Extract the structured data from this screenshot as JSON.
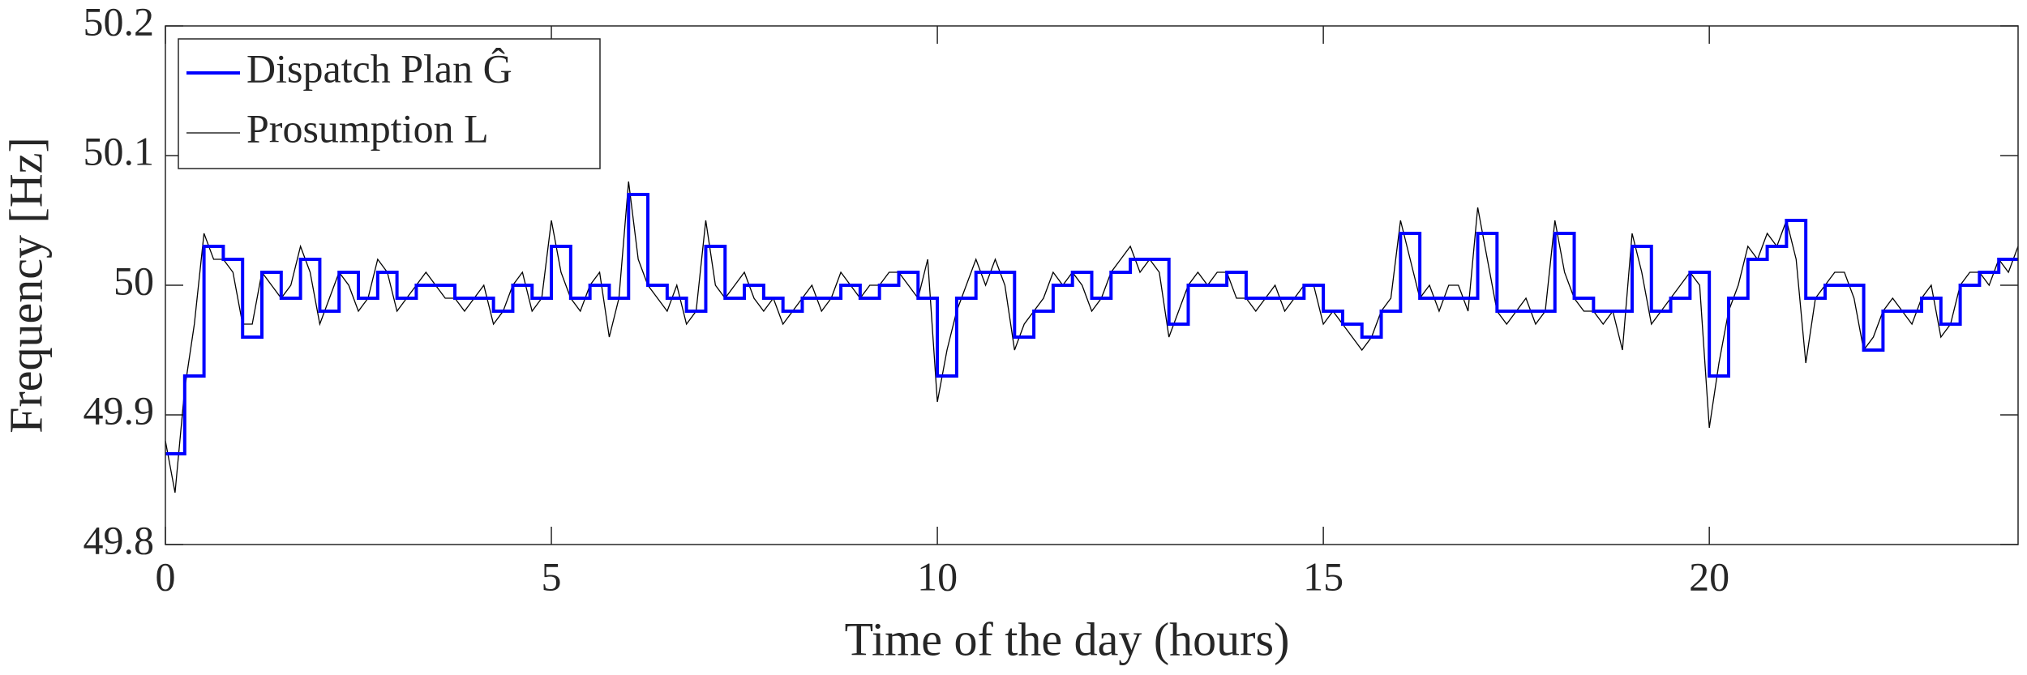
{
  "chart_data": {
    "type": "line",
    "xlabel": "Time of the day (hours)",
    "ylabel": "Frequency [Hz]",
    "xlim": [
      0,
      24
    ],
    "xticks": [
      0,
      5,
      10,
      15,
      20
    ],
    "ylim": [
      49.8,
      50.2
    ],
    "yticks": [
      49.8,
      49.9,
      50,
      50.1,
      50.2
    ],
    "legend": "upper left",
    "series": [
      {
        "name": "Dispatch Plan Ĝ",
        "color": "#0000ff",
        "step": true,
        "x": [
          0,
          0.25,
          0.5,
          0.75,
          1,
          1.25,
          1.5,
          1.75,
          2,
          2.25,
          2.5,
          2.75,
          3,
          3.25,
          3.5,
          3.75,
          4,
          4.25,
          4.5,
          4.75,
          5,
          5.25,
          5.5,
          5.75,
          6,
          6.25,
          6.5,
          6.75,
          7,
          7.25,
          7.5,
          7.75,
          8,
          8.25,
          8.5,
          8.75,
          9,
          9.25,
          9.5,
          9.75,
          10,
          10.25,
          10.5,
          10.75,
          11,
          11.25,
          11.5,
          11.75,
          12,
          12.25,
          12.5,
          12.75,
          13,
          13.25,
          13.5,
          13.75,
          14,
          14.25,
          14.5,
          14.75,
          15,
          15.25,
          15.5,
          15.75,
          16,
          16.25,
          16.5,
          16.75,
          17,
          17.25,
          17.5,
          17.75,
          18,
          18.25,
          18.5,
          18.75,
          19,
          19.25,
          19.5,
          19.75,
          20,
          20.25,
          20.5,
          20.75,
          21,
          21.25,
          21.5,
          21.75,
          22,
          22.25,
          22.5,
          22.75,
          23,
          23.25,
          23.5,
          23.75,
          24
        ],
        "values": [
          49.87,
          49.93,
          50.03,
          50.02,
          49.96,
          50.01,
          49.99,
          50.02,
          49.98,
          50.01,
          49.99,
          50.01,
          49.99,
          50.0,
          50.0,
          49.99,
          49.99,
          49.98,
          50.0,
          49.99,
          50.03,
          49.99,
          50.0,
          49.99,
          50.07,
          50.0,
          49.99,
          49.98,
          50.03,
          49.99,
          50.0,
          49.99,
          49.98,
          49.99,
          49.99,
          50.0,
          49.99,
          50.0,
          50.01,
          49.99,
          49.93,
          49.99,
          50.01,
          50.01,
          49.96,
          49.98,
          50.0,
          50.01,
          49.99,
          50.01,
          50.02,
          50.02,
          49.97,
          50.0,
          50.0,
          50.01,
          49.99,
          49.99,
          49.99,
          50.0,
          49.98,
          49.97,
          49.96,
          49.98,
          50.04,
          49.99,
          49.99,
          49.99,
          50.04,
          49.98,
          49.98,
          49.98,
          50.04,
          49.99,
          49.98,
          49.98,
          50.03,
          49.98,
          49.99,
          50.01,
          49.93,
          49.99,
          50.02,
          50.03,
          50.05,
          49.99,
          50.0,
          50.0,
          49.95,
          49.98,
          49.98,
          49.99,
          49.97,
          50.0,
          50.01,
          50.02,
          50.02
        ]
      },
      {
        "name": "Prosumption L",
        "color": "#000000",
        "x": [
          0,
          0.125,
          0.25,
          0.375,
          0.5,
          0.625,
          0.75,
          0.875,
          1,
          1.125,
          1.25,
          1.375,
          1.5,
          1.625,
          1.75,
          1.875,
          2,
          2.125,
          2.25,
          2.375,
          2.5,
          2.625,
          2.75,
          2.875,
          3,
          3.125,
          3.25,
          3.375,
          3.5,
          3.625,
          3.75,
          3.875,
          4,
          4.125,
          4.25,
          4.375,
          4.5,
          4.625,
          4.75,
          4.875,
          5,
          5.125,
          5.25,
          5.375,
          5.5,
          5.625,
          5.75,
          5.875,
          6,
          6.125,
          6.25,
          6.375,
          6.5,
          6.625,
          6.75,
          6.875,
          7,
          7.125,
          7.25,
          7.375,
          7.5,
          7.625,
          7.75,
          7.875,
          8,
          8.125,
          8.25,
          8.375,
          8.5,
          8.625,
          8.75,
          8.875,
          9,
          9.125,
          9.25,
          9.375,
          9.5,
          9.625,
          9.75,
          9.875,
          10,
          10.125,
          10.25,
          10.375,
          10.5,
          10.625,
          10.75,
          10.875,
          11,
          11.125,
          11.25,
          11.375,
          11.5,
          11.625,
          11.75,
          11.875,
          12,
          12.125,
          12.25,
          12.375,
          12.5,
          12.625,
          12.75,
          12.875,
          13,
          13.125,
          13.25,
          13.375,
          13.5,
          13.625,
          13.75,
          13.875,
          14,
          14.125,
          14.25,
          14.375,
          14.5,
          14.625,
          14.75,
          14.875,
          15,
          15.125,
          15.25,
          15.375,
          15.5,
          15.625,
          15.75,
          15.875,
          16,
          16.125,
          16.25,
          16.375,
          16.5,
          16.625,
          16.75,
          16.875,
          17,
          17.125,
          17.25,
          17.375,
          17.5,
          17.625,
          17.75,
          17.875,
          18,
          18.125,
          18.25,
          18.375,
          18.5,
          18.625,
          18.75,
          18.875,
          19,
          19.125,
          19.25,
          19.375,
          19.5,
          19.625,
          19.75,
          19.875,
          20,
          20.125,
          20.25,
          20.375,
          20.5,
          20.625,
          20.75,
          20.875,
          21,
          21.125,
          21.25,
          21.375,
          21.5,
          21.625,
          21.75,
          21.875,
          22,
          22.125,
          22.25,
          22.375,
          22.5,
          22.625,
          22.75,
          22.875,
          23,
          23.125,
          23.25,
          23.375,
          23.5,
          23.625,
          23.75,
          23.875,
          24
        ],
        "values": [
          49.88,
          49.84,
          49.92,
          49.97,
          50.04,
          50.02,
          50.02,
          50.01,
          49.97,
          49.97,
          50.01,
          50.0,
          49.99,
          50.0,
          50.03,
          50.01,
          49.97,
          49.99,
          50.01,
          50.0,
          49.98,
          49.99,
          50.02,
          50.01,
          49.98,
          49.99,
          50.0,
          50.01,
          50.0,
          49.99,
          49.99,
          49.98,
          49.99,
          50.0,
          49.97,
          49.98,
          50.0,
          50.01,
          49.98,
          49.99,
          50.05,
          50.01,
          49.99,
          49.98,
          50.0,
          50.01,
          49.96,
          49.99,
          50.08,
          50.02,
          50.0,
          49.99,
          49.98,
          50.0,
          49.97,
          49.98,
          50.05,
          50.0,
          49.99,
          50.0,
          50.01,
          49.99,
          49.98,
          49.99,
          49.97,
          49.98,
          49.99,
          50.0,
          49.98,
          49.99,
          50.01,
          50.0,
          49.99,
          50.0,
          50.0,
          50.01,
          50.01,
          50.0,
          49.99,
          50.02,
          49.91,
          49.95,
          49.98,
          50.0,
          50.02,
          50.0,
          50.02,
          50.0,
          49.95,
          49.97,
          49.98,
          49.99,
          50.01,
          50.0,
          50.01,
          50.0,
          49.98,
          49.99,
          50.01,
          50.02,
          50.03,
          50.01,
          50.02,
          50.01,
          49.96,
          49.98,
          50.0,
          50.01,
          50.0,
          50.01,
          50.01,
          49.99,
          49.99,
          49.98,
          49.99,
          50.0,
          49.98,
          49.99,
          50.0,
          50.0,
          49.97,
          49.98,
          49.97,
          49.96,
          49.95,
          49.96,
          49.98,
          49.99,
          50.05,
          50.02,
          49.99,
          50.0,
          49.98,
          50.0,
          50.0,
          49.98,
          50.06,
          50.02,
          49.98,
          49.97,
          49.98,
          49.99,
          49.97,
          49.98,
          50.05,
          50.01,
          49.99,
          49.98,
          49.98,
          49.97,
          49.98,
          49.95,
          50.04,
          50.01,
          49.97,
          49.98,
          49.99,
          50.0,
          50.01,
          50.0,
          49.89,
          49.94,
          49.98,
          50.0,
          50.03,
          50.02,
          50.04,
          50.03,
          50.05,
          50.02,
          49.94,
          49.99,
          50.0,
          50.01,
          50.01,
          49.99,
          49.95,
          49.96,
          49.98,
          49.99,
          49.98,
          49.97,
          49.99,
          50.0,
          49.96,
          49.97,
          50.0,
          50.01,
          50.01,
          50.0,
          50.02,
          50.01,
          50.03
        ]
      }
    ]
  }
}
